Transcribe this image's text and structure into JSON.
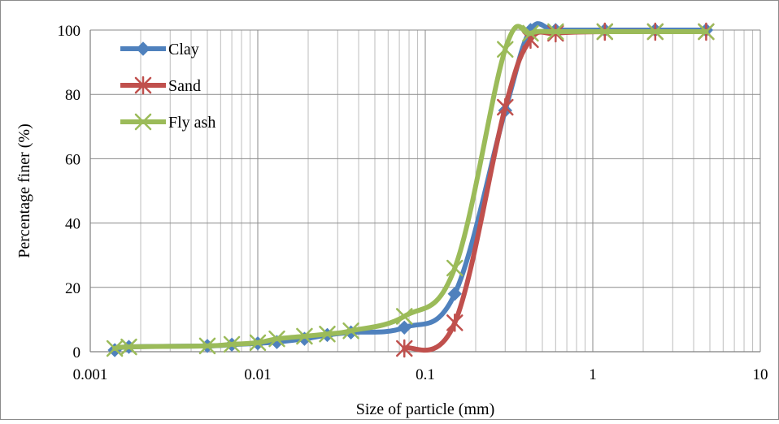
{
  "chart_data": {
    "type": "line",
    "title": "",
    "xlabel": "Size of particle (mm)",
    "ylabel": "Percentage finer (%)",
    "x_scale": "log",
    "xlim": [
      0.001,
      10
    ],
    "ylim": [
      0,
      100
    ],
    "x_ticks": [
      0.001,
      0.01,
      0.1,
      1,
      10
    ],
    "x_tick_labels": [
      "0.001",
      "0.01",
      "0.1",
      "1",
      "10"
    ],
    "y_ticks": [
      0,
      20,
      40,
      60,
      80,
      100
    ],
    "y_tick_labels": [
      "0",
      "20",
      "40",
      "60",
      "80",
      "100"
    ],
    "grid": "major and minor",
    "legend_position": "top-left",
    "series": [
      {
        "name": "Clay",
        "color": "#4F81BD",
        "marker": "diamond",
        "x": [
          0.0014,
          0.0017,
          0.005,
          0.007,
          0.01,
          0.013,
          0.019,
          0.026,
          0.036,
          0.075,
          0.15,
          0.3,
          0.425,
          0.6,
          1.18,
          2.36,
          4.75
        ],
        "y": [
          0.5,
          1.5,
          1.8,
          2.2,
          2.6,
          3.0,
          4.0,
          5.2,
          6.0,
          7.5,
          18,
          75,
          100,
          100,
          100,
          100,
          100
        ]
      },
      {
        "name": "Sand",
        "color": "#C0504D",
        "marker": "asterisk",
        "x": [
          0.075,
          0.15,
          0.3,
          0.425,
          0.6,
          1.18,
          2.36,
          4.75
        ],
        "y": [
          1,
          9,
          76,
          97,
          99,
          99.5,
          99.5,
          99.5
        ]
      },
      {
        "name": "Fly ash",
        "color": "#9BBB59",
        "marker": "x",
        "x": [
          0.0014,
          0.0017,
          0.005,
          0.007,
          0.01,
          0.013,
          0.019,
          0.026,
          0.036,
          0.075,
          0.15,
          0.3,
          0.425,
          0.6,
          1.18,
          2.36,
          4.75
        ],
        "y": [
          1.0,
          1.5,
          1.8,
          2.3,
          2.8,
          4.0,
          4.8,
          5.5,
          6.5,
          11,
          26,
          94,
          99,
          99.5,
          99.5,
          99.5,
          99.5
        ]
      }
    ]
  }
}
